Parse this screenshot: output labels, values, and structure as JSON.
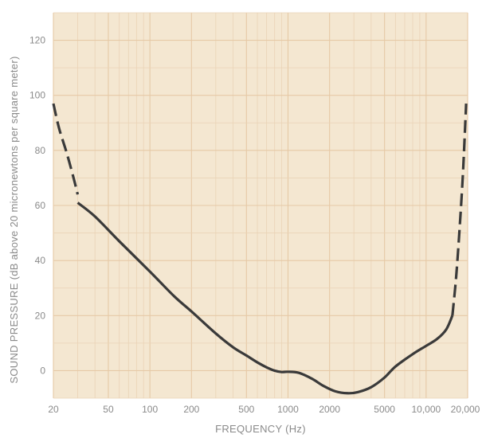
{
  "chart_data": {
    "type": "line",
    "xlabel": "FREQUENCY (Hz)",
    "ylabel": "SOUND PRESSURE (dB above 20 micronewtons per square meter)",
    "x_scale": "log",
    "xlim": [
      20,
      20000
    ],
    "ylim": [
      -10,
      130
    ],
    "grid": true,
    "x_ticks": [
      {
        "value": 20,
        "label": "20"
      },
      {
        "value": 50,
        "label": "50"
      },
      {
        "value": 100,
        "label": "100"
      },
      {
        "value": 200,
        "label": "200"
      },
      {
        "value": 500,
        "label": "500"
      },
      {
        "value": 1000,
        "label": "1000"
      },
      {
        "value": 2000,
        "label": "2000"
      },
      {
        "value": 5000,
        "label": "5000"
      },
      {
        "value": 10000,
        "label": "10,000"
      },
      {
        "value": 20000,
        "label": "20,000"
      }
    ],
    "y_ticks": [
      {
        "value": 0,
        "label": "0"
      },
      {
        "value": 20,
        "label": "20"
      },
      {
        "value": 40,
        "label": "40"
      },
      {
        "value": 60,
        "label": "60"
      },
      {
        "value": 80,
        "label": "80"
      },
      {
        "value": 100,
        "label": "100"
      },
      {
        "value": 120,
        "label": "120"
      }
    ],
    "series": [
      {
        "style": "solid",
        "color": "#3a3a3a",
        "x": [
          30,
          40,
          60,
          100,
          150,
          200,
          300,
          400,
          500,
          600,
          700,
          800,
          900,
          1000,
          1200,
          1500,
          1800,
          2200,
          2700,
          3200,
          4000,
          5000,
          6000,
          8000,
          10000,
          12000,
          14000,
          15500
        ],
        "y": [
          61,
          56,
          47,
          36,
          27,
          21.5,
          13.5,
          8.5,
          5.5,
          3,
          1.2,
          0,
          -0.5,
          -0.4,
          -0.8,
          -3,
          -5.5,
          -7.5,
          -8.2,
          -7.8,
          -6,
          -2.5,
          1.5,
          6,
          9,
          11.5,
          15,
          20
        ]
      },
      {
        "style": "dashed",
        "color": "#3a3a3a",
        "x": [
          20,
          22,
          25,
          28,
          30
        ],
        "y": [
          97,
          88,
          79,
          70,
          64
        ]
      },
      {
        "style": "dashed",
        "color": "#3a3a3a",
        "x": [
          15500,
          16500,
          17500,
          18500,
          19500
        ],
        "y": [
          20,
          34,
          52,
          72,
          97
        ]
      }
    ],
    "colors": {
      "plot_background": "#f4e7d1",
      "grid_major": "#e6c9a6",
      "grid_minor": "#ead3b6",
      "curve": "#3a3a3a",
      "text": "#8a8a8a"
    }
  }
}
